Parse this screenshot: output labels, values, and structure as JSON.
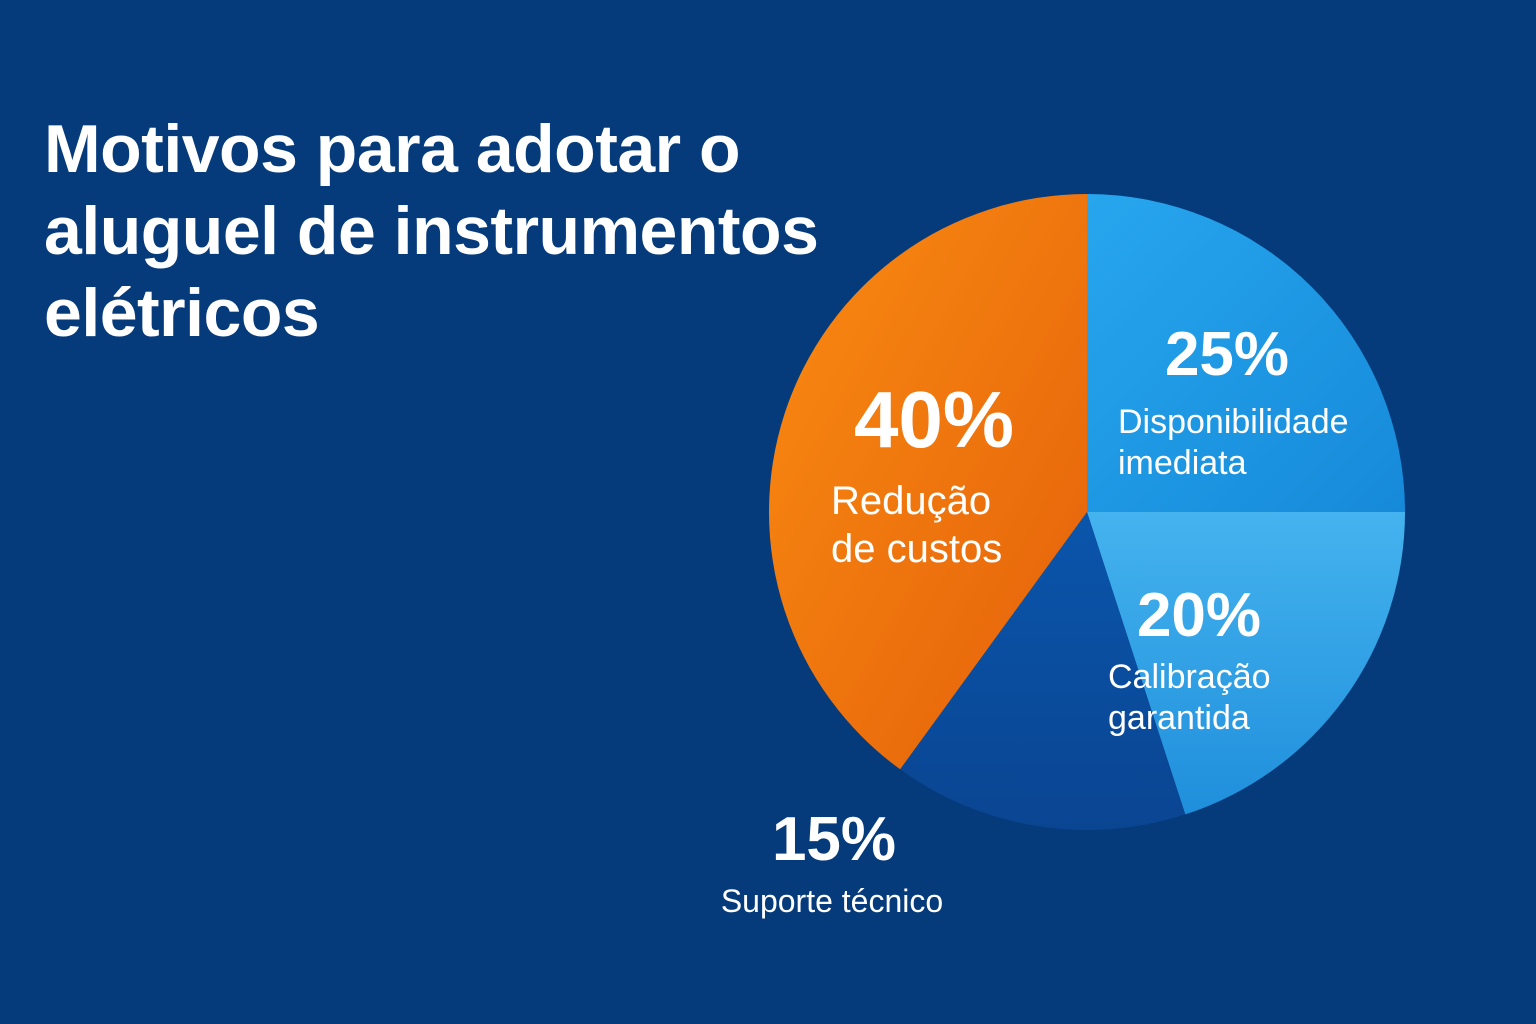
{
  "chart_data": {
    "type": "pie",
    "title": "Motivos para adotar o aluguel de instrumentos elétricos",
    "slices": [
      {
        "label": "Disponibilidade imediata",
        "value": 25,
        "display": "25%",
        "color": "#1e9be6"
      },
      {
        "label": "Calibração garantida",
        "value": 20,
        "display": "20%",
        "color": "#3aaeec"
      },
      {
        "label": "Suporte técnico",
        "value": 15,
        "display": "15%",
        "color": "#0a4b9e"
      },
      {
        "label": "Redução de custos",
        "value": 40,
        "display": "40%",
        "color": "#f5850f"
      }
    ],
    "label_lines": [
      [
        "Disponibilidade",
        "imediata"
      ],
      [
        "Calibração",
        "garantida"
      ],
      [
        "Suporte técnico"
      ],
      [
        "Redução",
        "de custos"
      ]
    ],
    "background_color": "#053a7b"
  }
}
